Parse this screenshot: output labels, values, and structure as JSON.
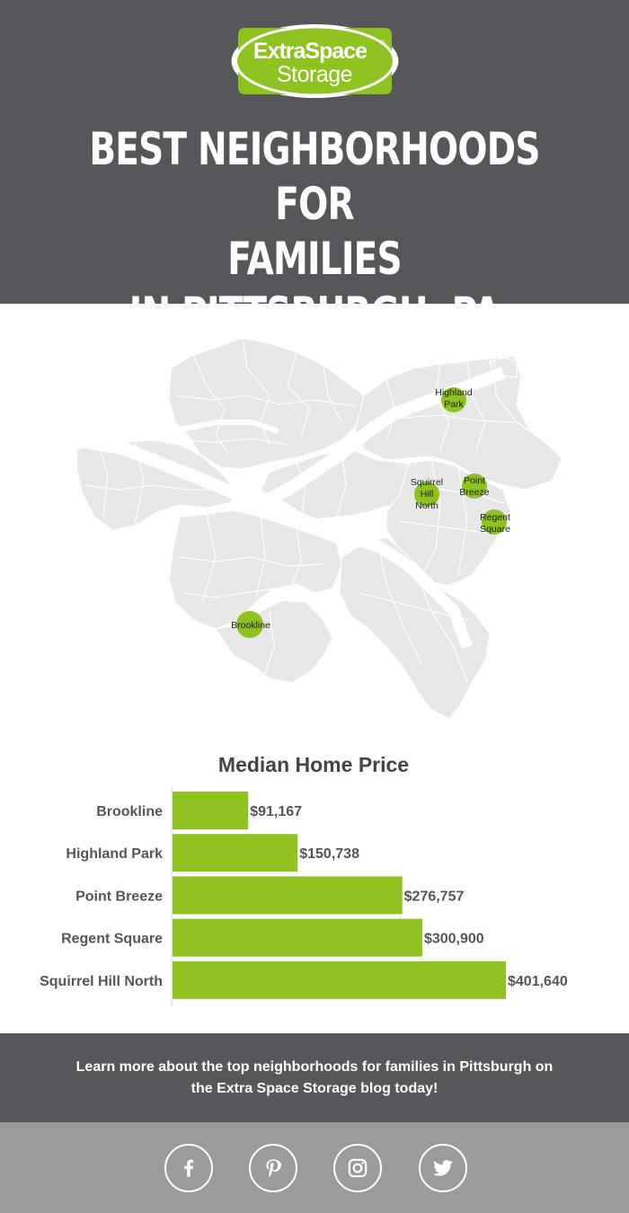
{
  "brand": {
    "line1": "ExtraSpace",
    "line2": "Storage",
    "registered": "®",
    "color": "#8dc21f"
  },
  "header": {
    "title_lines": [
      "BEST NEIGHBORHOODS FOR",
      "FAMILIES",
      "IN PITTSBURGH, PA"
    ]
  },
  "map": {
    "neighborhoods": [
      {
        "name": "Highland Park",
        "lines": [
          "Highland",
          "Park"
        ]
      },
      {
        "name": "Squirrel Hill North",
        "lines": [
          "Squirrel",
          "Hill",
          "North"
        ]
      },
      {
        "name": "Point Breeze",
        "lines": [
          "Point",
          "Breeze"
        ]
      },
      {
        "name": "Regent Square",
        "lines": [
          "Regent",
          "Square"
        ]
      },
      {
        "name": "Brookline",
        "lines": [
          "Brookline"
        ]
      }
    ],
    "marker_color": "#8dc21f"
  },
  "chart_data": {
    "type": "bar",
    "orientation": "horizontal",
    "title": "Median Home Price",
    "categories": [
      "Brookline",
      "Highland Park",
      "Point Breeze",
      "Regent Square",
      "Squirrel Hill North"
    ],
    "values": [
      91167,
      150738,
      276757,
      300900,
      401640
    ],
    "value_labels": [
      "$91,167",
      "$150,738",
      "$276,757",
      "$300,900",
      "$401,640"
    ],
    "xlim": [
      0,
      401640
    ],
    "bar_color": "#8dc21f",
    "grid": false
  },
  "cta": {
    "text": "Learn more about the top neighborhoods for families in Pittsburgh on the Extra Space Storage blog today!"
  },
  "social": [
    {
      "icon": "facebook-icon",
      "label": "Facebook"
    },
    {
      "icon": "pinterest-icon",
      "label": "Pinterest"
    },
    {
      "icon": "instagram-icon",
      "label": "Instagram"
    },
    {
      "icon": "twitter-icon",
      "label": "Twitter"
    }
  ],
  "colors": {
    "header_bg": "#55575b",
    "footer_bg": "#9b9b9b",
    "map_fill": "#e8e8e8"
  }
}
